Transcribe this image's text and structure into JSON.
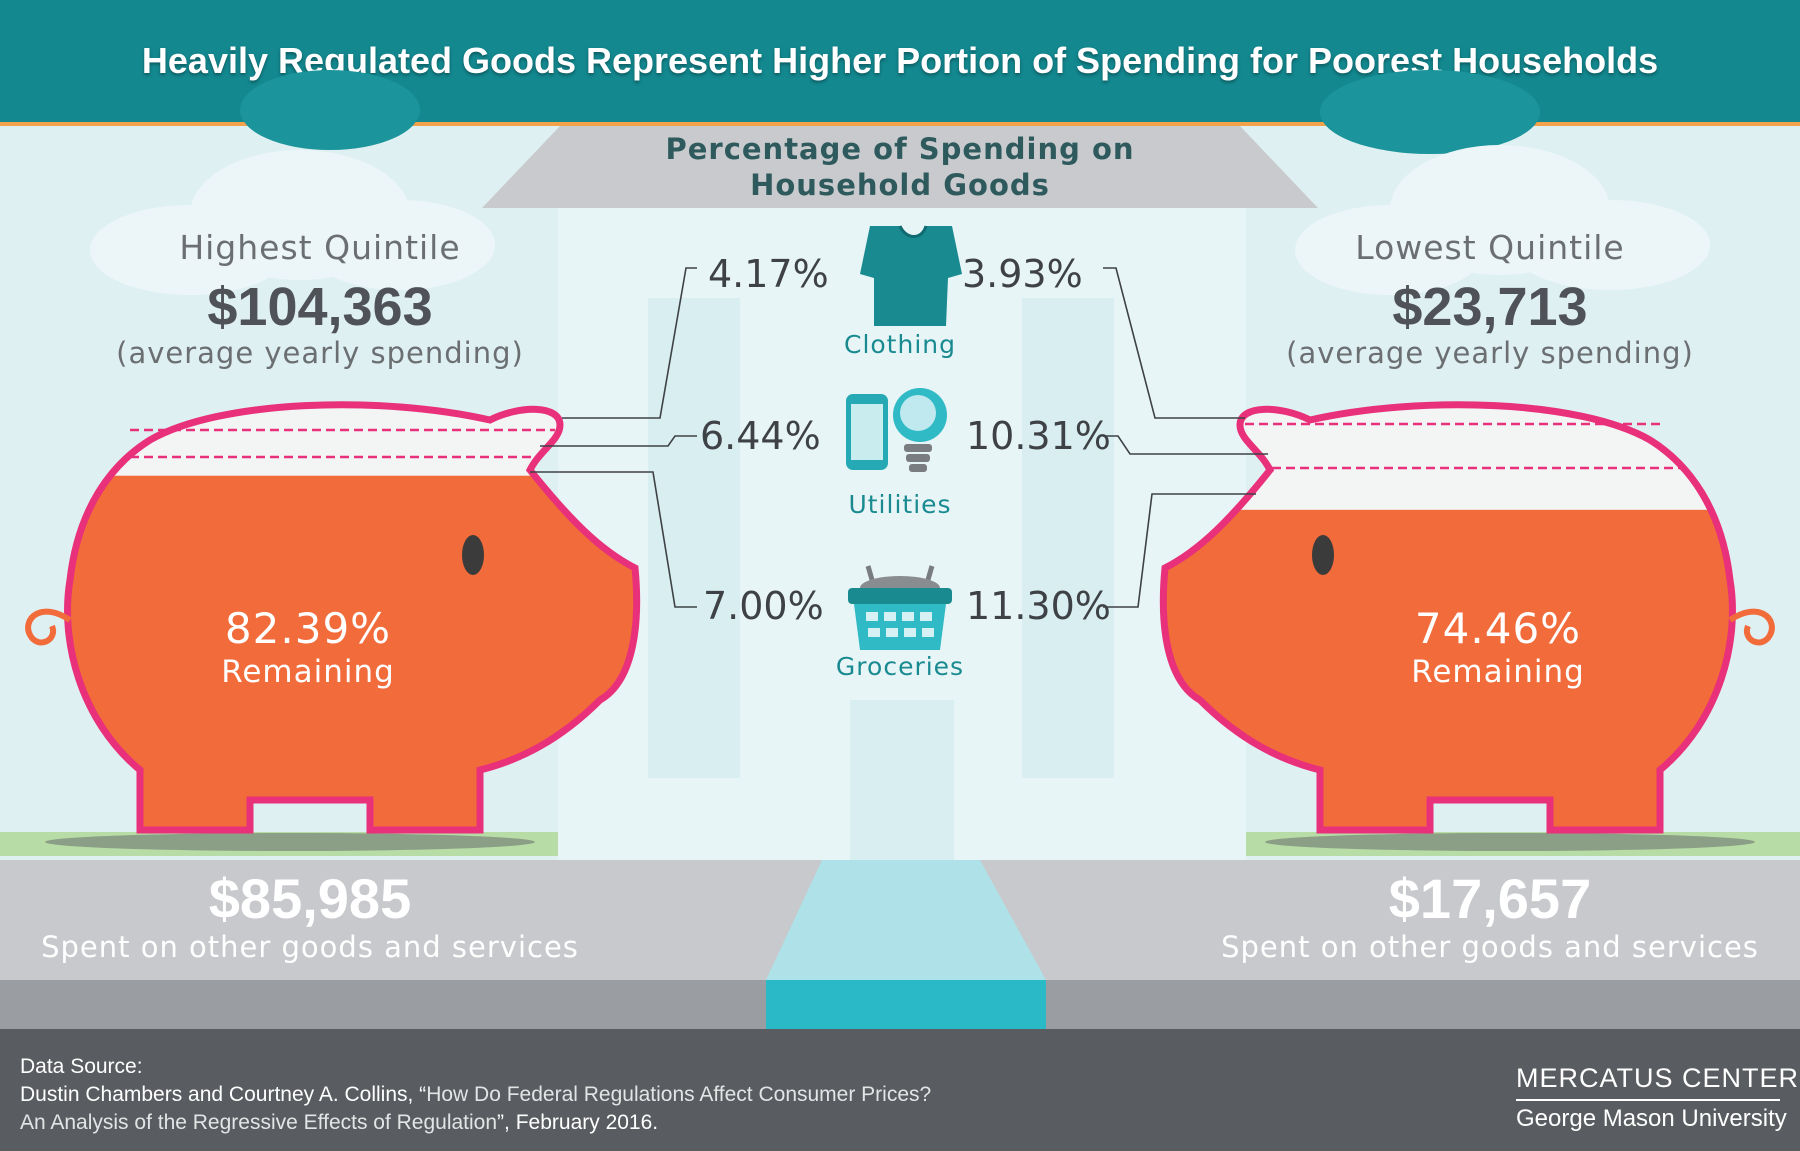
{
  "header": {
    "title": "Heavily Regulated Goods Represent Higher Portion of Spending for Poorest Households"
  },
  "center": {
    "title_line1": "Percentage of Spending on",
    "title_line2": "Household Goods",
    "categories": [
      {
        "label": "Clothing",
        "icon": "shirt-icon",
        "highest_pct": "4.17%",
        "lowest_pct": "3.93%"
      },
      {
        "label": "Utilities",
        "icon": "phone-lightbulb-icon",
        "highest_pct": "6.44%",
        "lowest_pct": "10.31%"
      },
      {
        "label": "Groceries",
        "icon": "basket-icon",
        "highest_pct": "7.00%",
        "lowest_pct": "11.30%"
      }
    ]
  },
  "highest": {
    "title": "Highest Quintile",
    "amount": "$104,363",
    "note": "(average yearly spending)",
    "remaining_pct": "82.39%",
    "remaining_label": "Remaining",
    "remaining_fraction": 0.8239,
    "other_amount": "$85,985",
    "other_label": "Spent on other goods and services"
  },
  "lowest": {
    "title": "Lowest Quintile",
    "amount": "$23,713",
    "note": "(average yearly spending)",
    "remaining_pct": "74.46%",
    "remaining_label": "Remaining",
    "remaining_fraction": 0.7446,
    "other_amount": "$17,657",
    "other_label": "Spent on other goods and services"
  },
  "footer": {
    "source_heading": "Data Source:",
    "authors": "Dustin Chambers and Courtney A. Collins, “",
    "paper_line1": "How Do Federal Regulations Affect Consumer Prices?",
    "paper_line2": "An Analysis of the Regressive Effects of Regulation",
    "date": "”, February 2016.",
    "logo_name": "MERCATUS CENTER",
    "logo_sub": "George Mason University"
  },
  "colors": {
    "header_teal": "#13888f",
    "accent_orange": "#f3a24a",
    "pig_orange": "#f26b3a",
    "pig_outline": "#e8317a",
    "icon_teal": "#1a8a91",
    "footer_gray": "#595c60"
  }
}
